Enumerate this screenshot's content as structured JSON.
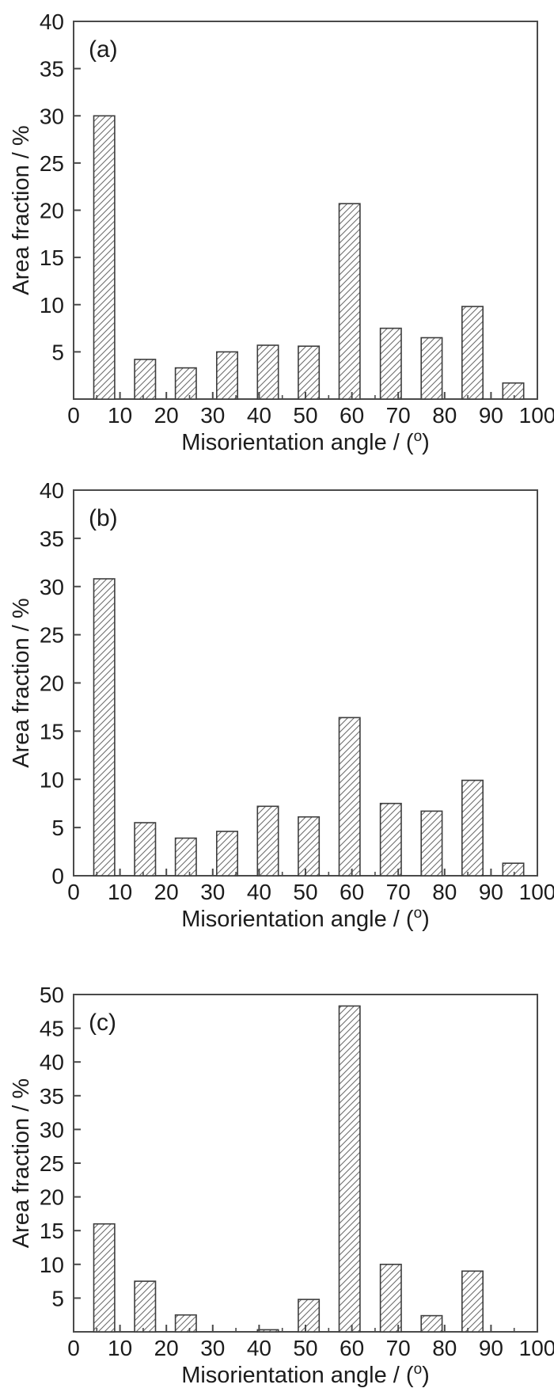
{
  "figure": {
    "background": "#ffffff",
    "text_color": "#1c1c1c",
    "axis_color": "#4a4a4a",
    "bar_border_color": "#3d3d3d",
    "hatch_color": "#6e6e6e",
    "bar_fill": "#ffffff"
  },
  "chart_data": [
    {
      "id": "a",
      "type": "bar",
      "panel_label": "(a)",
      "title": "",
      "xlabel": "Misorientation angle / (°)",
      "xlabel_prefix": "Misorientation angle / (",
      "xlabel_sup": "o",
      "xlabel_suffix": ")",
      "ylabel": "Area fraction / %",
      "xlim": [
        0,
        100
      ],
      "ylim": [
        0,
        40
      ],
      "grid": false,
      "legend": null,
      "x_major_ticks": [
        0,
        10,
        20,
        30,
        40,
        50,
        60,
        70,
        80,
        90,
        100
      ],
      "x_minor_ticks": [
        5,
        15,
        25,
        35,
        45,
        55,
        65,
        75,
        85,
        95
      ],
      "y_ticks": [
        0,
        5,
        10,
        15,
        20,
        25,
        30,
        35,
        40
      ],
      "y_tick_labels": [
        "",
        "5",
        "10",
        "15",
        "20",
        "25",
        "30",
        "35",
        "40"
      ],
      "bin_centers": [
        6.6,
        15.4,
        24.2,
        33.1,
        41.9,
        50.7,
        59.5,
        68.4,
        77.2,
        86.0,
        94.8
      ],
      "bar_width": 4.5,
      "values": [
        30.0,
        4.2,
        3.3,
        5.0,
        5.7,
        5.6,
        20.7,
        7.5,
        6.5,
        9.8,
        1.7
      ]
    },
    {
      "id": "b",
      "type": "bar",
      "panel_label": "(b)",
      "title": "",
      "xlabel": "Misorientation angle / (°)",
      "xlabel_prefix": "Misorientation angle / (",
      "xlabel_sup": "o",
      "xlabel_suffix": ")",
      "ylabel": "Area fraction / %",
      "xlim": [
        0,
        100
      ],
      "ylim": [
        0,
        40
      ],
      "grid": false,
      "legend": null,
      "x_major_ticks": [
        0,
        10,
        20,
        30,
        40,
        50,
        60,
        70,
        80,
        90,
        100
      ],
      "x_minor_ticks": [
        5,
        15,
        25,
        35,
        45,
        55,
        65,
        75,
        85,
        95
      ],
      "y_ticks": [
        0,
        5,
        10,
        15,
        20,
        25,
        30,
        35,
        40
      ],
      "y_tick_labels": [
        "0",
        "5",
        "10",
        "15",
        "20",
        "25",
        "30",
        "35",
        "40"
      ],
      "bin_centers": [
        6.6,
        15.4,
        24.2,
        33.1,
        41.9,
        50.7,
        59.5,
        68.4,
        77.2,
        86.0,
        94.8
      ],
      "bar_width": 4.5,
      "values": [
        30.8,
        5.5,
        3.9,
        4.6,
        7.2,
        6.1,
        16.4,
        7.5,
        6.7,
        9.9,
        1.3
      ]
    },
    {
      "id": "c",
      "type": "bar",
      "panel_label": "(c)",
      "title": "",
      "xlabel": "Misorientation angle / (°)",
      "xlabel_prefix": "Misorientation angle / (",
      "xlabel_sup": "o",
      "xlabel_suffix": ")",
      "ylabel": "Area fraction / %",
      "xlim": [
        0,
        100
      ],
      "ylim": [
        0,
        50
      ],
      "grid": false,
      "legend": null,
      "x_major_ticks": [
        0,
        10,
        20,
        30,
        40,
        50,
        60,
        70,
        80,
        90,
        100
      ],
      "x_minor_ticks": [
        5,
        15,
        25,
        35,
        45,
        55,
        65,
        75,
        85,
        95
      ],
      "y_ticks": [
        0,
        5,
        10,
        15,
        20,
        25,
        30,
        35,
        40,
        45,
        50
      ],
      "y_tick_labels": [
        "",
        "5",
        "10",
        "15",
        "20",
        "25",
        "30",
        "35",
        "40",
        "45",
        "50"
      ],
      "bin_centers": [
        6.6,
        15.4,
        24.2,
        33.1,
        41.9,
        50.7,
        59.5,
        68.4,
        77.2,
        86.0,
        94.8
      ],
      "bar_width": 4.5,
      "values": [
        16.0,
        7.5,
        2.5,
        0,
        0.3,
        4.8,
        48.3,
        10.0,
        2.4,
        9.0,
        0
      ]
    }
  ]
}
